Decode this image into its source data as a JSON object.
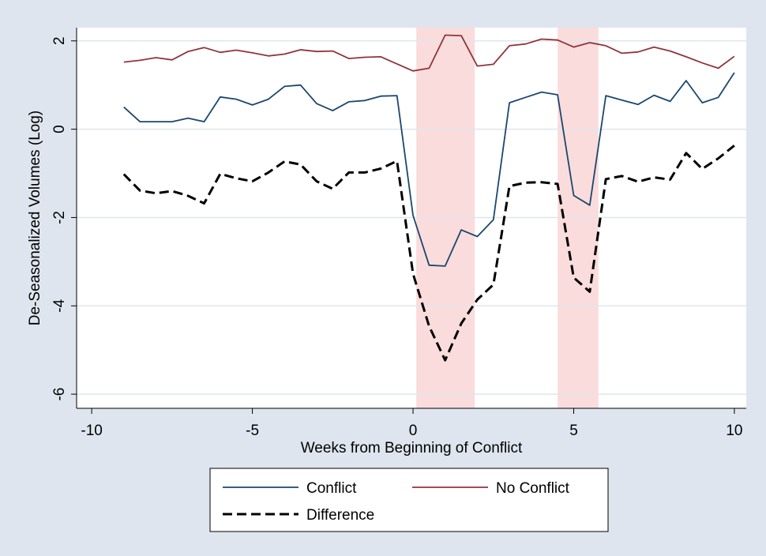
{
  "chart_data": {
    "type": "line",
    "xlabel": "Weeks from Beginning of Conflict",
    "ylabel": "De-Seasonalized Volumes (Log)",
    "x": [
      -9,
      -8.5,
      -8,
      -7.5,
      -7,
      -6.5,
      -6,
      -5.5,
      -5,
      -4.5,
      -4,
      -3.5,
      -3,
      -2.5,
      -2,
      -1.5,
      -1,
      -0.5,
      0,
      0.5,
      1,
      1.5,
      2,
      2.5,
      3,
      3.5,
      4,
      4.5,
      5,
      5.5,
      6,
      6.5,
      7,
      7.5,
      8,
      8.5,
      9,
      9.5,
      10
    ],
    "series": [
      {
        "name": "Conflict",
        "color": "#1a476f",
        "dash": false,
        "values": [
          0.5,
          0.17,
          0.17,
          0.17,
          0.25,
          0.17,
          0.73,
          0.68,
          0.55,
          0.68,
          0.97,
          1.0,
          0.58,
          0.42,
          0.62,
          0.65,
          0.75,
          0.76,
          -1.95,
          -3.08,
          -3.1,
          -2.28,
          -2.43,
          -2.05,
          0.6,
          0.72,
          0.84,
          0.78,
          -1.5,
          -1.72,
          0.76,
          0.66,
          0.56,
          0.77,
          0.63,
          1.1,
          0.6,
          0.72,
          1.28
        ]
      },
      {
        "name": "No Conflict",
        "color": "#90353b",
        "dash": false,
        "values": [
          1.52,
          1.56,
          1.62,
          1.57,
          1.76,
          1.85,
          1.74,
          1.79,
          1.73,
          1.66,
          1.7,
          1.8,
          1.76,
          1.77,
          1.6,
          1.63,
          1.64,
          1.48,
          1.32,
          1.38,
          2.13,
          2.12,
          1.43,
          1.47,
          1.89,
          1.93,
          2.04,
          2.02,
          1.86,
          1.96,
          1.89,
          1.72,
          1.75,
          1.86,
          1.77,
          1.64,
          1.5,
          1.38,
          1.65
        ]
      },
      {
        "name": "Difference",
        "color": "#000000",
        "dash": true,
        "values": [
          -1.02,
          -1.39,
          -1.45,
          -1.4,
          -1.51,
          -1.68,
          -1.01,
          -1.11,
          -1.18,
          -0.98,
          -0.73,
          -0.8,
          -1.18,
          -1.35,
          -0.98,
          -0.98,
          -0.89,
          -0.72,
          -3.27,
          -4.46,
          -5.23,
          -4.4,
          -3.86,
          -3.52,
          -1.29,
          -1.21,
          -1.2,
          -1.24,
          -3.36,
          -3.68,
          -1.13,
          -1.06,
          -1.19,
          -1.09,
          -1.14,
          -0.54,
          -0.9,
          -0.66,
          -0.37
        ]
      }
    ],
    "shaded_regions": [
      [
        0.1,
        1.92
      ],
      [
        4.5,
        5.77
      ]
    ],
    "shade_color": "#fadcdc",
    "xlim": [
      -10.47,
      10.37
    ],
    "ylim": [
      -6.32,
      2.3
    ],
    "xticks": [
      -10,
      -5,
      0,
      5,
      10
    ],
    "yticks": [
      -6,
      -4,
      -2,
      0,
      2
    ],
    "grid": true
  }
}
